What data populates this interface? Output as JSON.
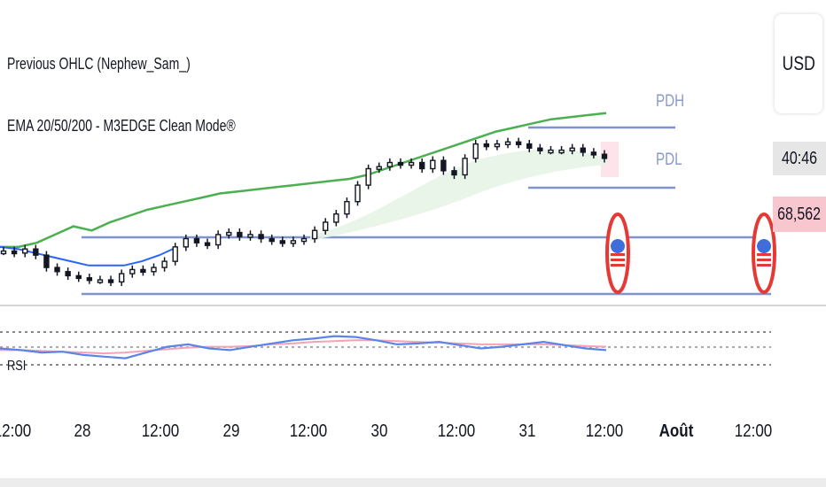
{
  "legend": {
    "line1": "Previous OHLC (Nephew_Sam_)",
    "line2": "EMA 20/50/200 - M3EDGE Clean Mode®"
  },
  "currency": "USD",
  "price_labels": {
    "countdown": "40:46",
    "last_price": "68,562"
  },
  "levels": {
    "pdh_label": "PDH",
    "pdl_label": "PDL"
  },
  "rsi": {
    "label": "RSI"
  },
  "x_axis_labels": [
    {
      "text": "12:00",
      "bold": false
    },
    {
      "text": "28",
      "bold": false
    },
    {
      "text": "12:00",
      "bold": false
    },
    {
      "text": "29",
      "bold": false
    },
    {
      "text": "12:00",
      "bold": false
    },
    {
      "text": "30",
      "bold": false
    },
    {
      "text": "12:00",
      "bold": false
    },
    {
      "text": "31",
      "bold": false
    },
    {
      "text": "12:00",
      "bold": false
    },
    {
      "text": "Août",
      "bold": true
    },
    {
      "text": "12:00",
      "bold": false
    }
  ],
  "colors": {
    "ema_green": "#4caf50",
    "ema_blue": "#2962ff",
    "level_line": "#7f93cf",
    "rsi_line": "#5b84e8",
    "rsi_ma": "#f2a3b8",
    "countdown_bg": "#e6e6e6",
    "last_price_bg": "#f7c6cf",
    "event_red": "#e53935"
  },
  "chart_data": {
    "type": "line",
    "series": [
      {
        "values": [
          22,
          22,
          24,
          28,
          32,
          30,
          34,
          37,
          40,
          42,
          44,
          46,
          48,
          49,
          50,
          51,
          52,
          53,
          54,
          55,
          57,
          60,
          63,
          66,
          69,
          72,
          75,
          78,
          80,
          82,
          84,
          85,
          86,
          87
        ]
      },
      {
        "values": [
          22,
          21,
          19,
          17,
          15,
          13,
          13,
          13,
          15,
          18,
          22
        ]
      }
    ],
    "candles_close": [
      20,
      19,
      21,
      18,
      12,
      10,
      8,
      7,
      6,
      6,
      5,
      9,
      11,
      10,
      12,
      15,
      22,
      26,
      24,
      23,
      28,
      29,
      27,
      28,
      26,
      25,
      24,
      25,
      26,
      30,
      34,
      38,
      44,
      52,
      60,
      61,
      63,
      62,
      63,
      60,
      64,
      59,
      57,
      65,
      72,
      71,
      72,
      73,
      72,
      70,
      69,
      69,
      69,
      70,
      68,
      67,
      65
    ],
    "rsi": [
      50,
      48,
      45,
      46,
      42,
      40,
      38,
      45,
      52,
      55,
      50,
      48,
      52,
      56,
      60,
      62,
      65,
      64,
      60,
      55,
      56,
      58,
      54,
      50,
      52,
      55,
      58,
      54,
      50,
      48
    ],
    "rsi_ma": [
      48,
      48,
      47,
      46,
      45,
      44,
      45,
      47,
      49,
      51,
      52,
      52,
      53,
      55,
      56,
      58,
      59,
      60,
      60,
      59,
      58,
      57,
      56,
      55,
      55,
      55,
      55,
      54,
      53,
      52
    ]
  }
}
